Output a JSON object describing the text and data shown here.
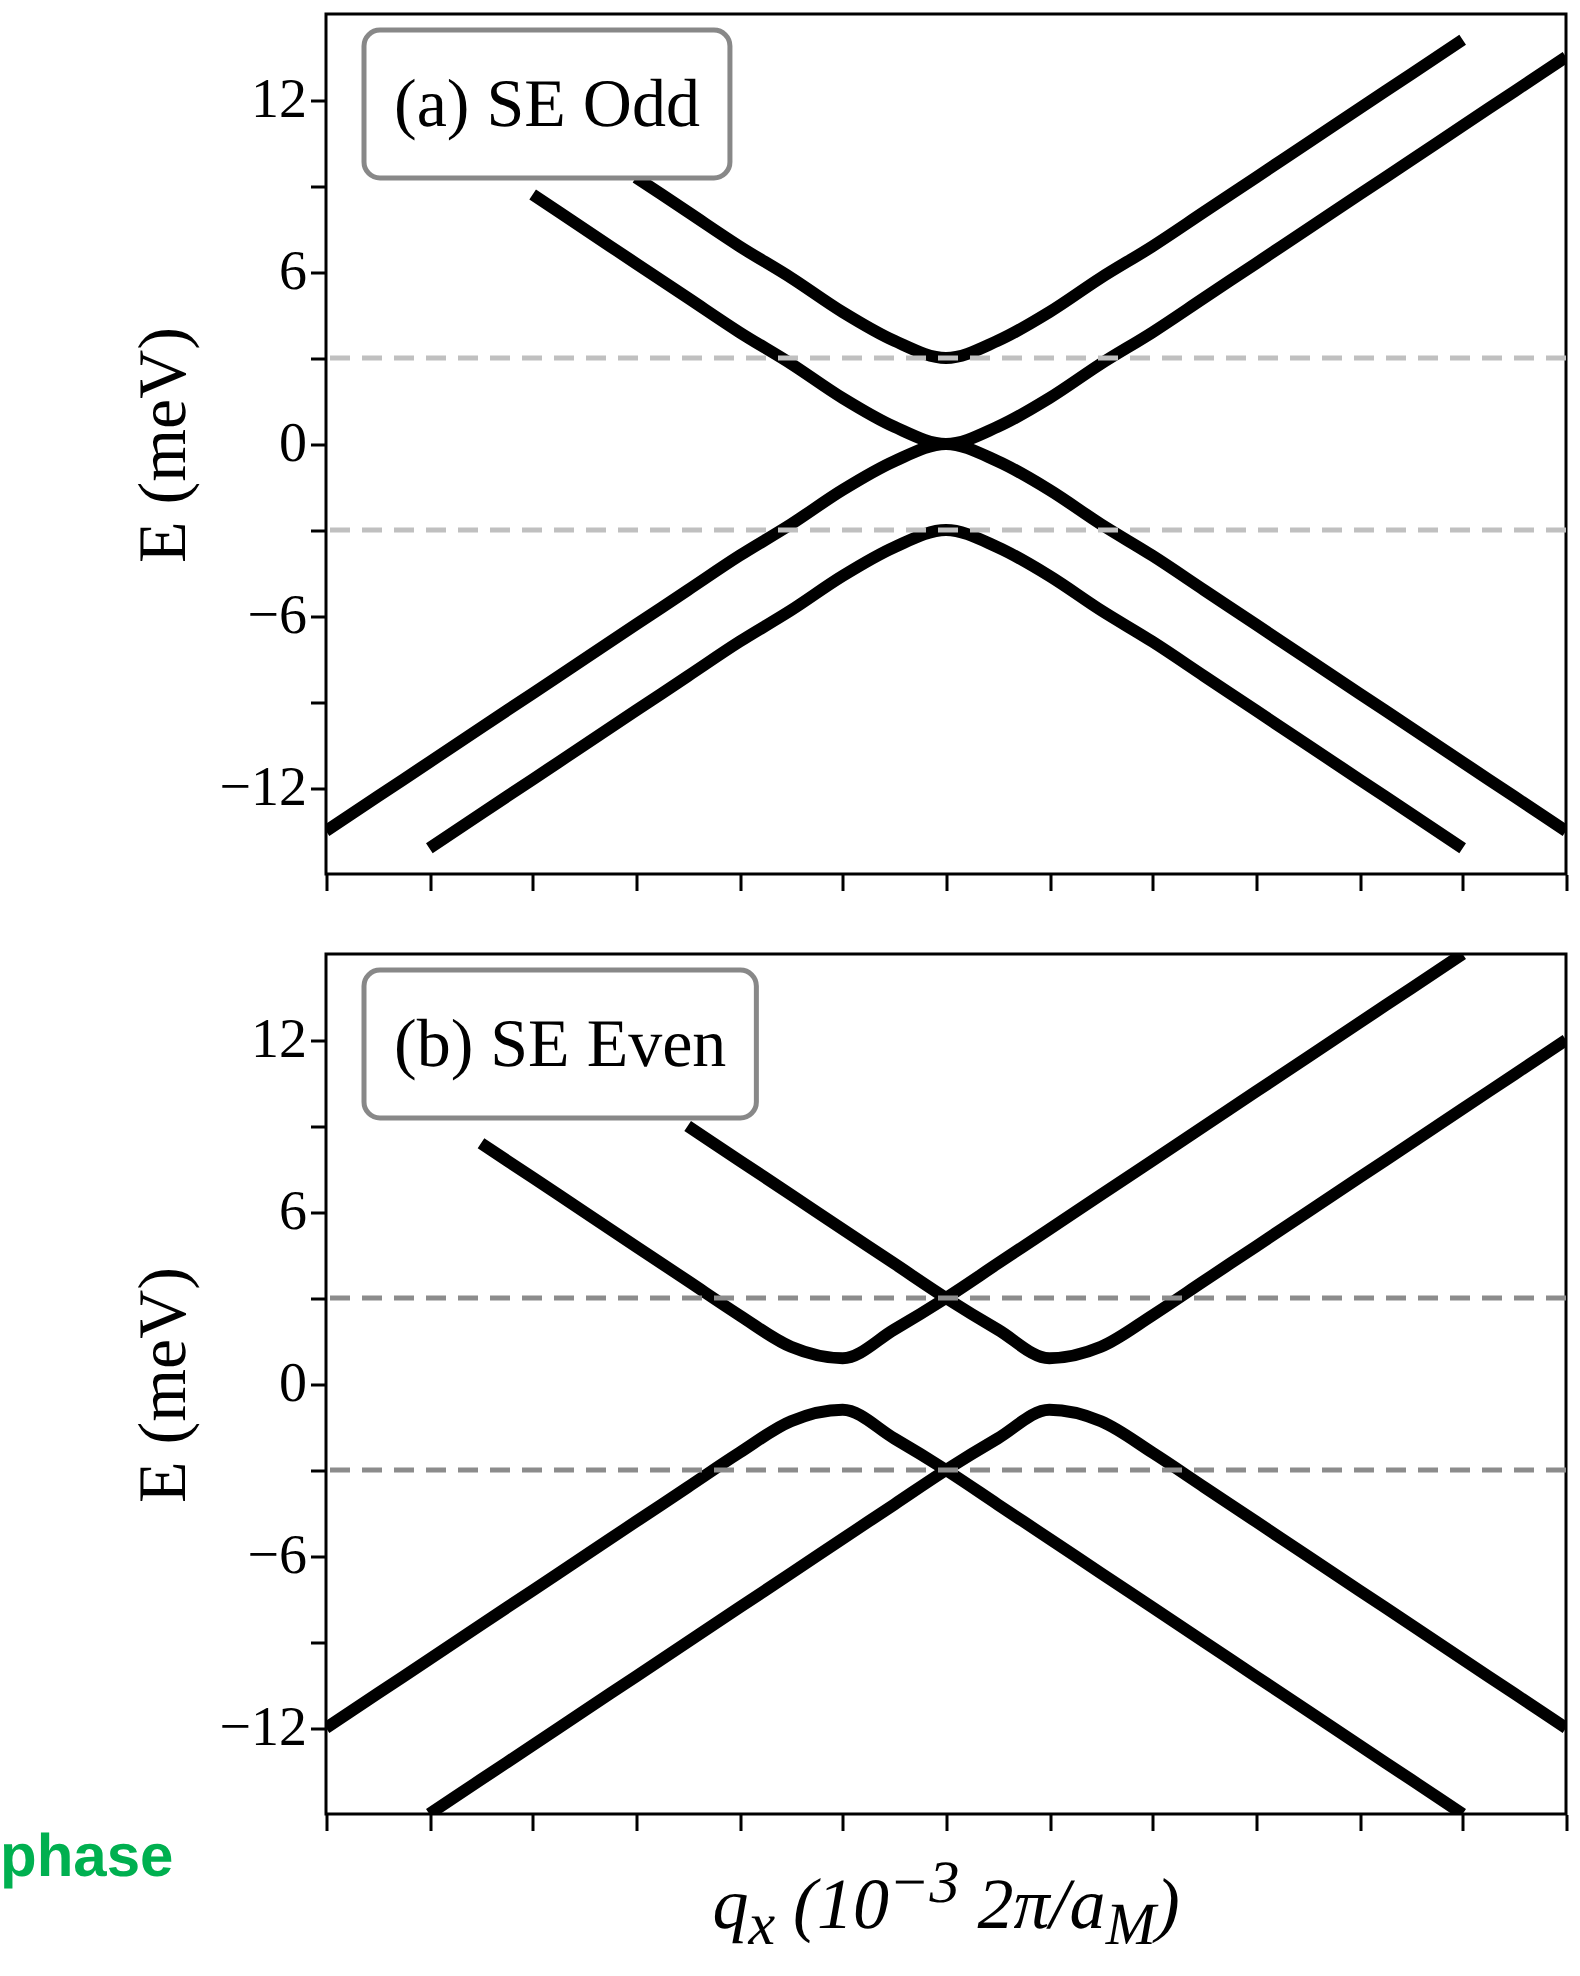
{
  "chart_data": [
    {
      "type": "line",
      "tick_labels": "y",
      "ylabel": "E (meV)",
      "ylim": [
        -15,
        15
      ],
      "yticks": [
        {
          "value": -12,
          "label": "−12"
        },
        {
          "value": -9,
          "label": null
        },
        {
          "value": -6,
          "label": "−6"
        },
        {
          "value": -3,
          "label": null
        },
        0,
        {
          "value": 3,
          "label": null
        },
        6,
        {
          "value": 9,
          "label": null
        },
        12
      ],
      "categories": [
        null,
        null,
        null,
        null,
        null,
        null,
        null,
        null,
        null,
        null,
        null,
        null,
        null,
        null,
        null,
        null,
        null,
        null,
        null,
        null,
        null,
        null,
        null,
        null,
        null
      ],
      "annotations": [
        "(a) SE Odd"
      ],
      "ref_lines": [
        {
          "axis": "y",
          "value": 3,
          "color": "#c0c0c0",
          "line_style": "dashed"
        },
        {
          "axis": "y",
          "value": -3,
          "color": "#c0c0c0",
          "line_style": "dashed"
        }
      ],
      "series": [
        {
          "color": "#000000",
          "values": [
            null,
            null,
            null,
            null,
            null,
            null,
            9.3,
            8.1,
            6.9,
            5.8,
            4.6,
            3.6,
            3,
            3.6,
            4.6,
            5.8,
            6.9,
            8.1,
            9.3,
            10.5,
            11.7,
            12.9,
            14.1,
            null,
            null
          ]
        },
        {
          "color": "#000000",
          "values": [
            null,
            null,
            null,
            null,
            8.7,
            7.5,
            6.3,
            5.1,
            3.9,
            2.8,
            1.6,
            0.6,
            0,
            0.6,
            1.6,
            2.8,
            3.9,
            5.1,
            6.3,
            7.5,
            8.7,
            9.9,
            11.1,
            12.3,
            13.5
          ]
        },
        {
          "color": "#000000",
          "values": [
            -13.5,
            -12.3,
            -11.1,
            -9.9,
            -8.7,
            -7.5,
            -6.3,
            -5.1,
            -3.9,
            -2.8,
            -1.6,
            -0.6,
            0,
            -0.6,
            -1.6,
            -2.8,
            -3.9,
            -5.1,
            -6.3,
            -7.5,
            -8.7,
            -9.9,
            -11.1,
            -12.3,
            -13.5
          ]
        },
        {
          "color": "#000000",
          "values": [
            null,
            null,
            -14.1,
            -12.9,
            -11.7,
            -10.5,
            -9.3,
            -8.1,
            -6.9,
            -5.8,
            -4.6,
            -3.6,
            -3,
            -3.6,
            -4.6,
            -5.8,
            -6.9,
            -8.1,
            -9.3,
            -10.5,
            -11.7,
            -12.9,
            -14.1,
            null,
            null
          ]
        }
      ]
    },
    {
      "type": "line",
      "tick_labels": "y",
      "ylabel": "E (meV)",
      "xlabel": "q$_{x}$ (10$^{−3}$ 2π/a$_{M}$)",
      "ylim": [
        -15,
        15
      ],
      "yticks": [
        {
          "value": -12,
          "label": "−12"
        },
        {
          "value": -9,
          "label": null
        },
        {
          "value": -6,
          "label": "−6"
        },
        {
          "value": -3,
          "label": null
        },
        0,
        {
          "value": 3,
          "label": null
        },
        6,
        {
          "value": 9,
          "label": null
        },
        12
      ],
      "categories": [
        null,
        null,
        null,
        null,
        null,
        null,
        null,
        null,
        null,
        null,
        null,
        null,
        null,
        null,
        null,
        null,
        null,
        null,
        null,
        null,
        null,
        null,
        null,
        null,
        null
      ],
      "annotations": [
        "(b) SE Even",
        "phase"
      ],
      "ref_lines": [
        {
          "axis": "y",
          "value": 3,
          "color": "#8c8c8c",
          "line_style": "dashed"
        },
        {
          "axis": "y",
          "value": -3,
          "color": "#8c8c8c",
          "line_style": "dashed"
        }
      ],
      "series": [
        {
          "color": "#000000",
          "values": [
            null,
            null,
            null,
            8.4,
            7.2,
            6.0,
            4.8,
            3.6,
            2.4,
            1.3,
            0.9,
            1.9,
            3.0,
            4.2,
            5.4,
            6.6,
            7.8,
            9.0,
            10.2,
            11.4,
            12.6,
            13.8,
            15.0,
            null,
            null
          ]
        },
        {
          "color": "#000000",
          "values": [
            null,
            null,
            null,
            null,
            null,
            null,
            null,
            9.0,
            7.8,
            6.6,
            5.4,
            4.2,
            3.0,
            1.9,
            0.9,
            1.3,
            2.4,
            3.6,
            4.8,
            6.0,
            7.2,
            8.4,
            9.6,
            10.8,
            12.0
          ]
        },
        {
          "color": "#000000",
          "values": [
            -12.0,
            -10.8,
            -9.6,
            -8.4,
            -7.2,
            -6.0,
            -4.8,
            -3.6,
            -2.4,
            -1.3,
            -0.9,
            -1.9,
            -3.0,
            -4.2,
            -5.4,
            -6.6,
            -7.8,
            -9.0,
            -10.2,
            -11.4,
            -12.6,
            -13.8,
            -15.0,
            null,
            null
          ]
        },
        {
          "color": "#000000",
          "values": [
            null,
            null,
            -15.0,
            -13.8,
            -12.6,
            -11.4,
            -10.2,
            -9.0,
            -7.8,
            -6.6,
            -5.4,
            -4.2,
            -3.0,
            -1.9,
            -0.9,
            -1.3,
            -2.4,
            -3.6,
            -4.8,
            -6.0,
            -7.2,
            -8.4,
            -9.6,
            -10.8,
            -12.0
          ]
        }
      ]
    }
  ]
}
